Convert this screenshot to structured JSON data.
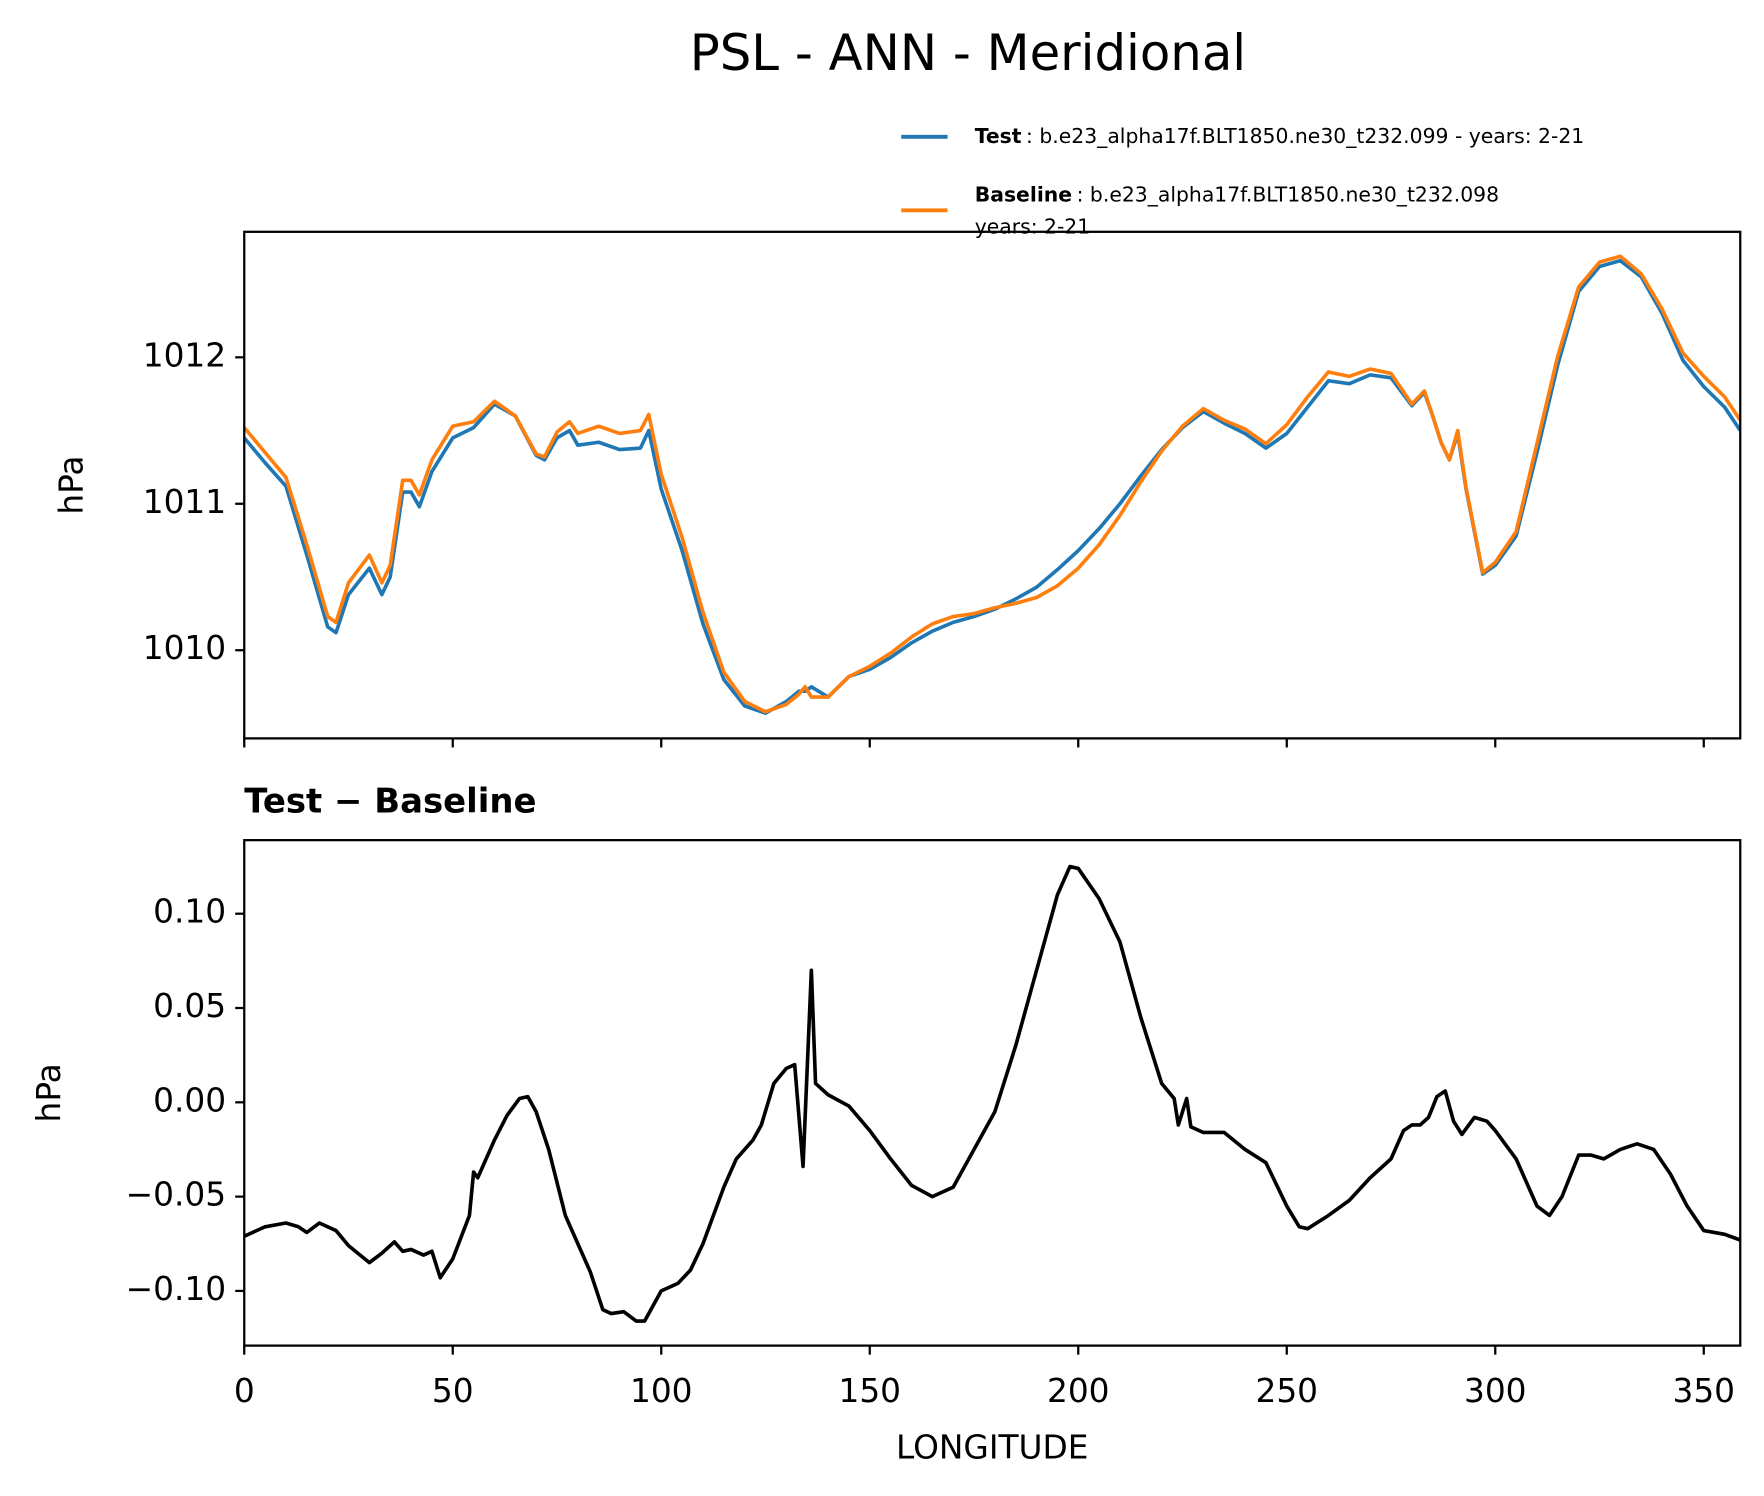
{
  "chart_data": [
    {
      "type": "line",
      "title": "PSL - ANN - Meridional",
      "ylabel": "hPa",
      "xlim": [
        0,
        358.75
      ],
      "xticks": [
        0,
        50,
        100,
        150,
        200,
        250,
        300,
        350
      ],
      "xtick_labels": false,
      "ylim": [
        1009.398,
        1012.857
      ],
      "yticks": [
        1010,
        1011,
        1012
      ],
      "grid": false,
      "legend": "upper right",
      "x": [
        0,
        5,
        10,
        15,
        20,
        22,
        25,
        30,
        33,
        35,
        38,
        40,
        42,
        45,
        50,
        55,
        60,
        65,
        70,
        72,
        75,
        78,
        80,
        85,
        90,
        95,
        97,
        100,
        105,
        110,
        115,
        120,
        125,
        130,
        133,
        134.5,
        136,
        140,
        145,
        150,
        155,
        160,
        165,
        170,
        175,
        180,
        185,
        190,
        195,
        200,
        205,
        210,
        215,
        220,
        225,
        230,
        235,
        240,
        245,
        250,
        255,
        260,
        265,
        270,
        275,
        280,
        283,
        285,
        287,
        289,
        291,
        293,
        297,
        300,
        305,
        310,
        315,
        320,
        325,
        330,
        335,
        340,
        345,
        350,
        355,
        358.75
      ],
      "series": [
        {
          "name": "Test",
          "description": [
            ": b.e23_alpha17f.BLT1850.ne30_t232.099 - years: 2-21"
          ],
          "color": "#1f77b4",
          "values": [
            1011.45,
            1011.28,
            1011.12,
            1010.65,
            1010.16,
            1010.12,
            1010.38,
            1010.56,
            1010.38,
            1010.5,
            1011.08,
            1011.08,
            1010.98,
            1011.22,
            1011.45,
            1011.52,
            1011.68,
            1011.6,
            1011.33,
            1011.3,
            1011.45,
            1011.5,
            1011.4,
            1011.42,
            1011.37,
            1011.38,
            1011.5,
            1011.1,
            1010.68,
            1010.18,
            1009.8,
            1009.62,
            1009.57,
            1009.65,
            1009.72,
            1009.72,
            1009.75,
            1009.68,
            1009.82,
            1009.87,
            1009.95,
            1010.05,
            1010.13,
            1010.19,
            1010.23,
            1010.28,
            1010.35,
            1010.43,
            1010.55,
            1010.68,
            1010.83,
            1011,
            1011.19,
            1011.37,
            1011.52,
            1011.63,
            1011.55,
            1011.48,
            1011.38,
            1011.48,
            1011.66,
            1011.84,
            1011.82,
            1011.88,
            1011.86,
            1011.67,
            1011.76,
            1011.6,
            1011.42,
            1011.3,
            1011.48,
            1011.1,
            1010.52,
            1010.58,
            1010.78,
            1011.35,
            1011.95,
            1012.45,
            1012.62,
            1012.66,
            1012.55,
            1012.3,
            1011.98,
            1011.8,
            1011.66,
            1011.5
          ]
        },
        {
          "name": "Baseline",
          "description": [
            ": b.e23_alpha17f.BLT1850.ne30_t232.098",
            "years: 2-21"
          ],
          "color": "#ff7f0e",
          "values": [
            1011.52,
            1011.35,
            1011.18,
            1010.72,
            1010.23,
            1010.19,
            1010.46,
            1010.65,
            1010.46,
            1010.58,
            1011.16,
            1011.16,
            1011.06,
            1011.3,
            1011.53,
            1011.56,
            1011.7,
            1011.6,
            1011.34,
            1011.32,
            1011.49,
            1011.56,
            1011.48,
            1011.53,
            1011.48,
            1011.5,
            1011.61,
            1011.2,
            1010.77,
            1010.26,
            1009.85,
            1009.65,
            1009.58,
            1009.63,
            1009.7,
            1009.75,
            1009.68,
            1009.68,
            1009.82,
            1009.89,
            1009.98,
            1010.09,
            1010.18,
            1010.23,
            1010.25,
            1010.29,
            1010.32,
            1010.36,
            1010.44,
            1010.56,
            1010.72,
            1010.92,
            1011.15,
            1011.36,
            1011.53,
            1011.65,
            1011.57,
            1011.51,
            1011.41,
            1011.54,
            1011.73,
            1011.9,
            1011.87,
            1011.92,
            1011.89,
            1011.68,
            1011.77,
            1011.6,
            1011.42,
            1011.3,
            1011.5,
            1011.11,
            1010.53,
            1010.6,
            1010.81,
            1011.41,
            1012.01,
            1012.48,
            1012.65,
            1012.69,
            1012.57,
            1012.33,
            1012.03,
            1011.87,
            1011.73,
            1011.57
          ]
        }
      ]
    },
    {
      "type": "line",
      "title": "Test − Baseline",
      "ylabel": "hPa",
      "xlabel": "LONGITUDE",
      "xlim": [
        0,
        358.75
      ],
      "xticks": [
        0,
        50,
        100,
        150,
        200,
        250,
        300,
        350
      ],
      "xtick_labels": true,
      "ylim": [
        -0.129,
        0.139
      ],
      "yticks": [
        {
          "value": -0.1,
          "label": "−0.10"
        },
        {
          "value": -0.05,
          "label": "−0.05"
        },
        {
          "value": 0,
          "label": "0.00"
        },
        0.05,
        {
          "value": 0.1,
          "label": "0.10"
        }
      ],
      "grid": false,
      "color": "#000000",
      "x": [
        0,
        5,
        10,
        13,
        15,
        18,
        22,
        25,
        30,
        33,
        36,
        38,
        40,
        43,
        45,
        47,
        50,
        54,
        55,
        56,
        58,
        60,
        63,
        66,
        68,
        70,
        73,
        77,
        80,
        83,
        86,
        88,
        91,
        94,
        96,
        98,
        100,
        104,
        107,
        110,
        115,
        118,
        122,
        124,
        127,
        130,
        132,
        134,
        136,
        137,
        140,
        145,
        150,
        155,
        160,
        165,
        170,
        175,
        180,
        185,
        190,
        195,
        198,
        200,
        205,
        210,
        215,
        220,
        223,
        224,
        226,
        227,
        230,
        235,
        240,
        245,
        250,
        253,
        255,
        260,
        265,
        270,
        275,
        278,
        280,
        282,
        284,
        286,
        288,
        290,
        292,
        295,
        298,
        300,
        305,
        310,
        313,
        316,
        320,
        323,
        326,
        330,
        334,
        338,
        342,
        346,
        350,
        355,
        358.75
      ],
      "values": [
        -0.071,
        -0.066,
        -0.064,
        -0.066,
        -0.069,
        -0.064,
        -0.068,
        -0.076,
        -0.085,
        -0.08,
        -0.074,
        -0.079,
        -0.078,
        -0.081,
        -0.079,
        -0.093,
        -0.083,
        -0.06,
        -0.037,
        -0.04,
        -0.03,
        -0.02,
        -0.007,
        0.002,
        0.003,
        -0.005,
        -0.025,
        -0.06,
        -0.075,
        -0.09,
        -0.11,
        -0.112,
        -0.111,
        -0.116,
        -0.116,
        -0.108,
        -0.1,
        -0.096,
        -0.089,
        -0.075,
        -0.045,
        -0.03,
        -0.02,
        -0.012,
        0.01,
        0.018,
        0.02,
        -0.034,
        0.07,
        0.01,
        0.004,
        -0.002,
        -0.015,
        -0.03,
        -0.044,
        -0.05,
        -0.045,
        -0.025,
        -0.005,
        0.03,
        0.07,
        0.11,
        0.125,
        0.124,
        0.108,
        0.085,
        0.045,
        0.01,
        0.002,
        -0.012,
        0.002,
        -0.013,
        -0.016,
        -0.016,
        -0.025,
        -0.032,
        -0.055,
        -0.066,
        -0.067,
        -0.06,
        -0.052,
        -0.04,
        -0.03,
        -0.015,
        -0.012,
        -0.012,
        -0.008,
        0.003,
        0.006,
        -0.01,
        -0.017,
        -0.008,
        -0.01,
        -0.015,
        -0.03,
        -0.055,
        -0.06,
        -0.05,
        -0.028,
        -0.028,
        -0.03,
        -0.025,
        -0.022,
        -0.025,
        -0.038,
        -0.055,
        -0.068,
        -0.07,
        -0.073
      ]
    }
  ]
}
